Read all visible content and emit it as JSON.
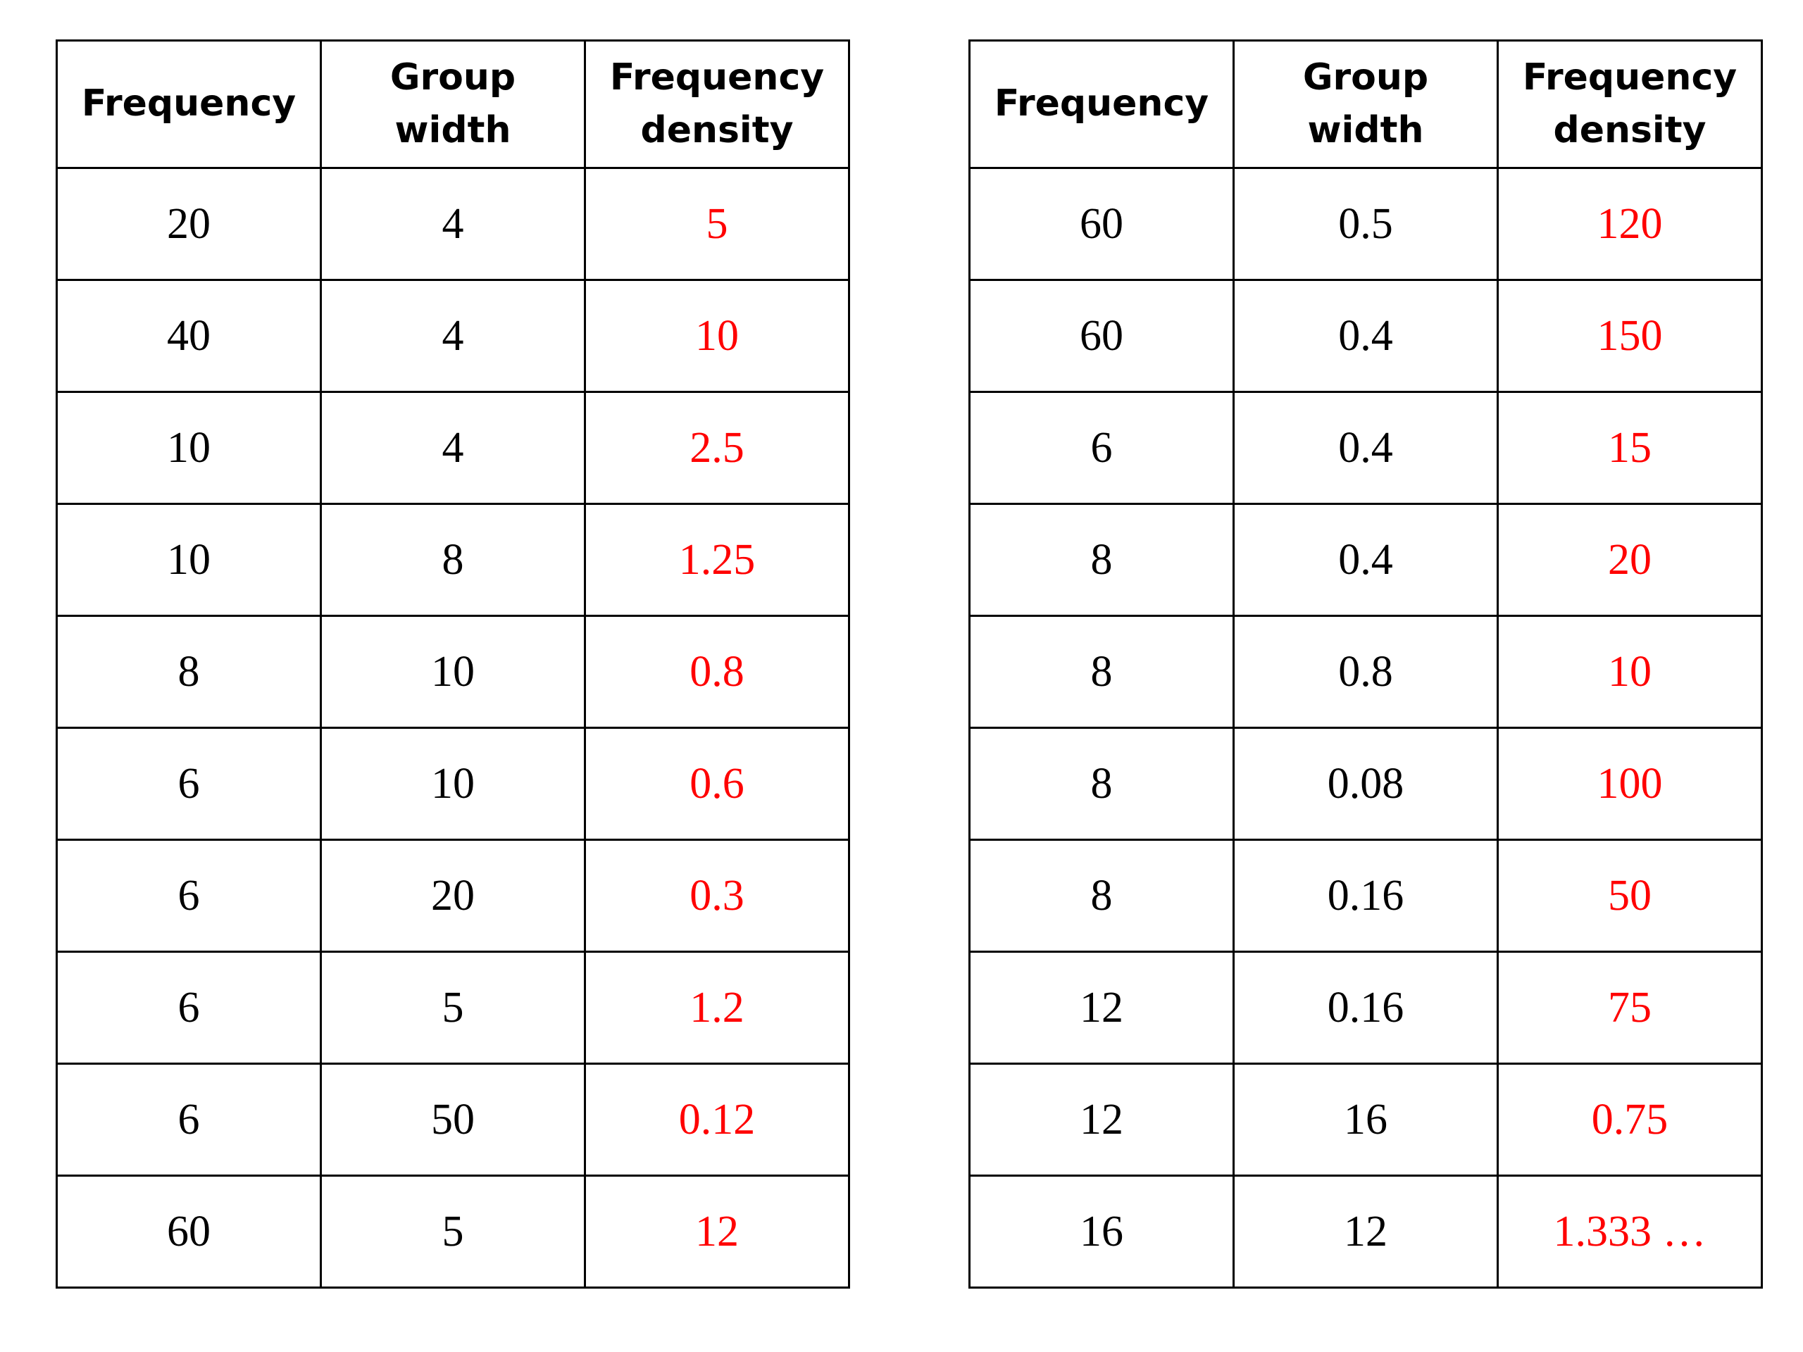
{
  "colors": {
    "border": "#000000",
    "text": "#000000",
    "answer": "#ff0000",
    "background": "#ffffff"
  },
  "headers": {
    "frequency": "Frequency",
    "group_width_line1": "Group",
    "group_width_line2": "width",
    "density_line1": "Frequency",
    "density_line2": "density"
  },
  "tables": [
    {
      "rows": [
        {
          "frequency": "20",
          "group_width": "4",
          "density": "5"
        },
        {
          "frequency": "40",
          "group_width": "4",
          "density": "10"
        },
        {
          "frequency": "10",
          "group_width": "4",
          "density": "2.5"
        },
        {
          "frequency": "10",
          "group_width": "8",
          "density": "1.25"
        },
        {
          "frequency": "8",
          "group_width": "10",
          "density": "0.8"
        },
        {
          "frequency": "6",
          "group_width": "10",
          "density": "0.6"
        },
        {
          "frequency": "6",
          "group_width": "20",
          "density": "0.3"
        },
        {
          "frequency": "6",
          "group_width": "5",
          "density": "1.2"
        },
        {
          "frequency": "6",
          "group_width": "50",
          "density": "0.12"
        },
        {
          "frequency": "60",
          "group_width": "5",
          "density": "12"
        }
      ]
    },
    {
      "rows": [
        {
          "frequency": "60",
          "group_width": "0.5",
          "density": "120"
        },
        {
          "frequency": "60",
          "group_width": "0.4",
          "density": "150"
        },
        {
          "frequency": "6",
          "group_width": "0.4",
          "density": "15"
        },
        {
          "frequency": "8",
          "group_width": "0.4",
          "density": "20"
        },
        {
          "frequency": "8",
          "group_width": "0.8",
          "density": "10"
        },
        {
          "frequency": "8",
          "group_width": "0.08",
          "density": "100"
        },
        {
          "frequency": "8",
          "group_width": "0.16",
          "density": "50"
        },
        {
          "frequency": "12",
          "group_width": "0.16",
          "density": "75"
        },
        {
          "frequency": "12",
          "group_width": "16",
          "density": "0.75"
        },
        {
          "frequency": "16",
          "group_width": "12",
          "density": "1.333 …"
        }
      ]
    }
  ]
}
